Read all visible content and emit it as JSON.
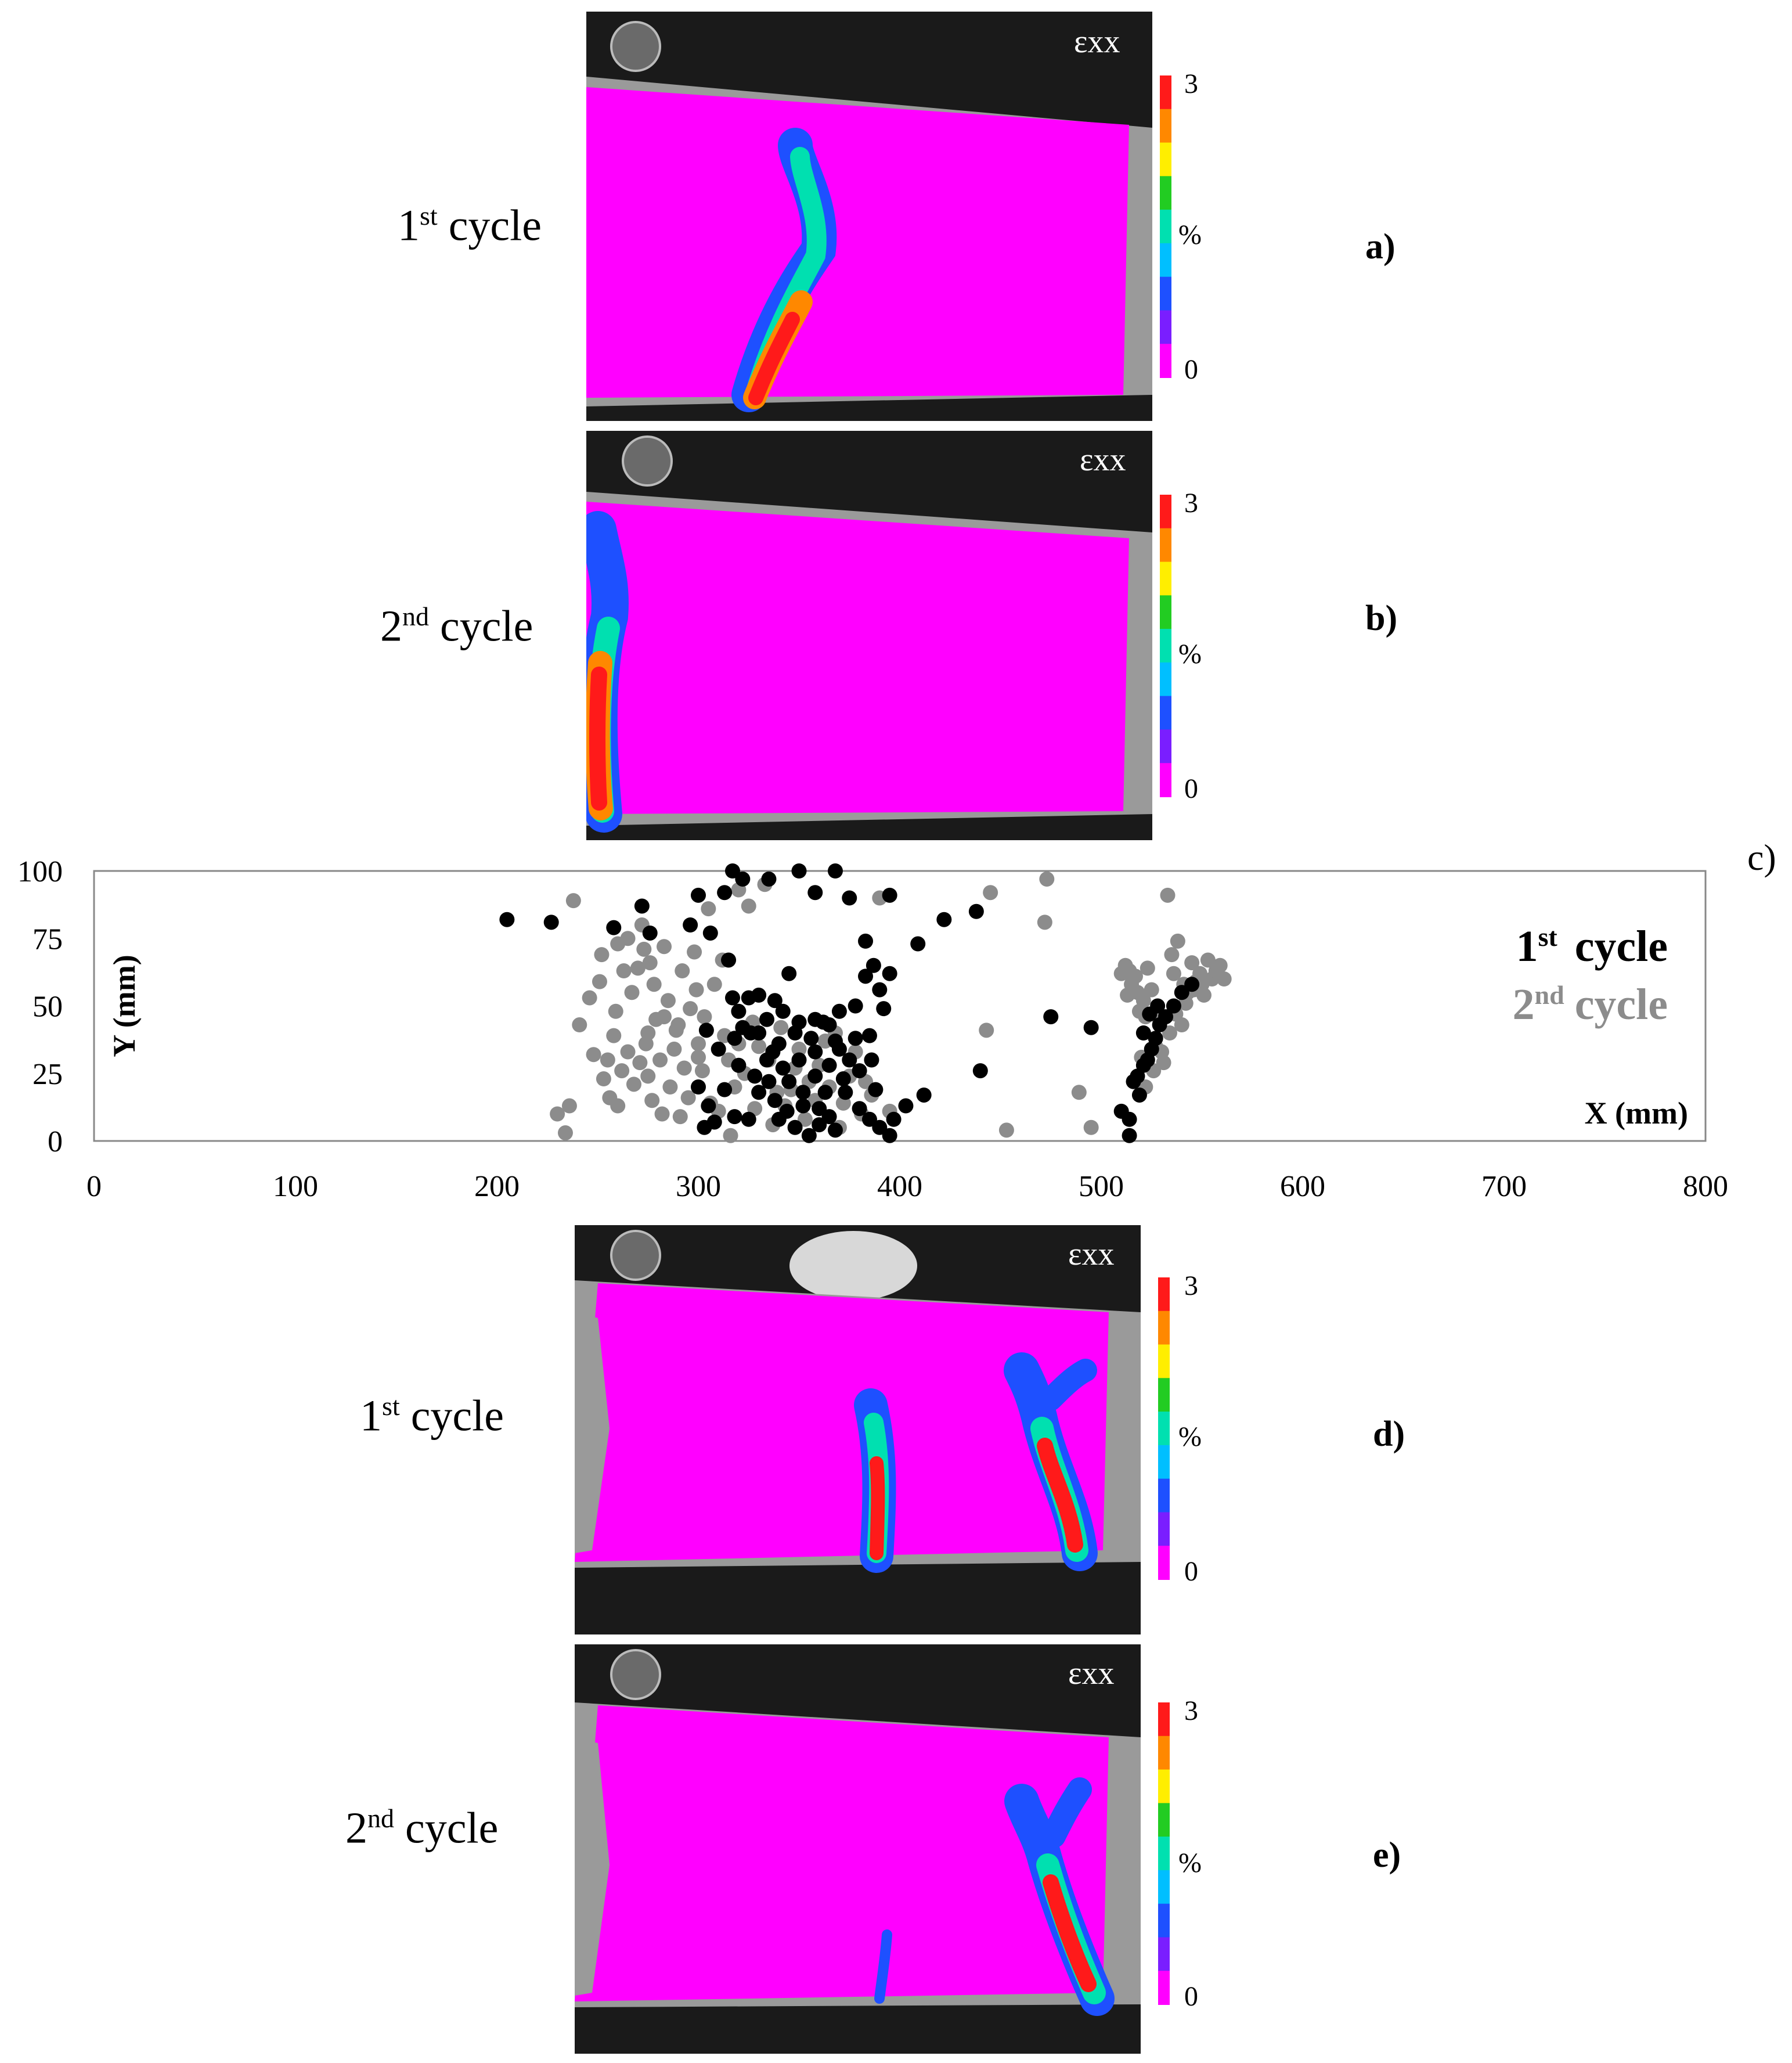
{
  "strain_symbol": "εxx",
  "colorbar": {
    "max": "3",
    "unit": "%",
    "min": "0",
    "colors": [
      "#ff1a1a",
      "#ff8800",
      "#ffee00",
      "#22cc22",
      "#00e0b0",
      "#00bfff",
      "#1e50ff",
      "#7a1eff",
      "#ff00ff"
    ]
  },
  "panels": [
    {
      "label": "a)",
      "cycle": "1",
      "suffix": "st",
      "word": "cycle"
    },
    {
      "label": "b)",
      "cycle": "2",
      "suffix": "nd",
      "word": "cycle"
    },
    {
      "label": "d)",
      "cycle": "1",
      "suffix": "st",
      "word": "cycle"
    },
    {
      "label": "e)",
      "cycle": "2",
      "suffix": "nd",
      "word": "cycle"
    }
  ],
  "chart_label": "c)",
  "chart_data": {
    "type": "scatter",
    "xlabel": "X (mm)",
    "ylabel": "Y (mm)",
    "xlim": [
      0,
      800
    ],
    "ylim": [
      0,
      100
    ],
    "xticks": [
      "0",
      "100",
      "200",
      "300",
      "400",
      "500",
      "600",
      "700",
      "800"
    ],
    "yticks": [
      "0",
      "25",
      "50",
      "75",
      "100"
    ],
    "legend": "right, inside plot",
    "series": [
      {
        "name_num": "1",
        "name_sup": "st",
        "name_word": "cycle",
        "color": "#000000",
        "points": [
          [
            205,
            82
          ],
          [
            227,
            81
          ],
          [
            258,
            79
          ],
          [
            272,
            87
          ],
          [
            276,
            77
          ],
          [
            296,
            80
          ],
          [
            306,
            77
          ],
          [
            313,
            92
          ],
          [
            300,
            91
          ],
          [
            317,
            100
          ],
          [
            322,
            97
          ],
          [
            335,
            97
          ],
          [
            350,
            100
          ],
          [
            368,
            100
          ],
          [
            358,
            92
          ],
          [
            375,
            90
          ],
          [
            383,
            74
          ],
          [
            395,
            91
          ],
          [
            409,
            73
          ],
          [
            422,
            82
          ],
          [
            438,
            85
          ],
          [
            440,
            26
          ],
          [
            475,
            46
          ],
          [
            495,
            42
          ],
          [
            315,
            67
          ],
          [
            317,
            53
          ],
          [
            320,
            48
          ],
          [
            325,
            53
          ],
          [
            330,
            54
          ],
          [
            338,
            52
          ],
          [
            345,
            62
          ],
          [
            350,
            44
          ],
          [
            358,
            45
          ],
          [
            365,
            43
          ],
          [
            370,
            48
          ],
          [
            378,
            50
          ],
          [
            383,
            61
          ],
          [
            387,
            65
          ],
          [
            390,
            56
          ],
          [
            395,
            62
          ],
          [
            392,
            49
          ],
          [
            385,
            39
          ],
          [
            378,
            38
          ],
          [
            370,
            34
          ],
          [
            365,
            28
          ],
          [
            358,
            24
          ],
          [
            350,
            30
          ],
          [
            342,
            27
          ],
          [
            335,
            22
          ],
          [
            328,
            24
          ],
          [
            320,
            28
          ],
          [
            313,
            19
          ],
          [
            305,
            13
          ],
          [
            300,
            20
          ],
          [
            308,
            7
          ],
          [
            318,
            9
          ],
          [
            325,
            8
          ],
          [
            330,
            18
          ],
          [
            338,
            15
          ],
          [
            345,
            22
          ],
          [
            352,
            18
          ],
          [
            360,
            12
          ],
          [
            365,
            9
          ],
          [
            368,
            4
          ],
          [
            373,
            18
          ],
          [
            380,
            12
          ],
          [
            385,
            8
          ],
          [
            390,
            5
          ],
          [
            397,
            8
          ],
          [
            403,
            13
          ],
          [
            412,
            17
          ],
          [
            395,
            2
          ],
          [
            388,
            19
          ],
          [
            375,
            30
          ],
          [
            368,
            37
          ],
          [
            362,
            44
          ],
          [
            356,
            38
          ],
          [
            348,
            40
          ],
          [
            340,
            36
          ],
          [
            334,
            30
          ],
          [
            326,
            40
          ],
          [
            318,
            38
          ],
          [
            310,
            34
          ],
          [
            304,
            41
          ],
          [
            334,
            45
          ],
          [
            342,
            48
          ],
          [
            340,
            8
          ],
          [
            355,
            2
          ],
          [
            360,
            6
          ],
          [
            348,
            5
          ],
          [
            303,
            5
          ],
          [
            510,
            11
          ],
          [
            514,
            8
          ],
          [
            516,
            22
          ],
          [
            518,
            24
          ],
          [
            521,
            28
          ],
          [
            523,
            30
          ],
          [
            525,
            34
          ],
          [
            527,
            38
          ],
          [
            529,
            43
          ],
          [
            532,
            46
          ],
          [
            536,
            50
          ],
          [
            540,
            55
          ],
          [
            545,
            58
          ],
          [
            519,
            17
          ],
          [
            514,
            2
          ],
          [
            521,
            40
          ],
          [
            524,
            47
          ],
          [
            528,
            50
          ],
          [
            330,
            40
          ],
          [
            372,
            23
          ],
          [
            358,
            33
          ],
          [
            344,
            11
          ],
          [
            322,
            42
          ],
          [
            380,
            26
          ],
          [
            363,
            18
          ],
          [
            352,
            13
          ],
          [
            337,
            33
          ],
          [
            386,
            30
          ]
        ]
      },
      {
        "name_num": "2",
        "name_sup": "nd",
        "name_word": "cycle",
        "color": "#8c8c8c",
        "points": [
          [
            230,
            10
          ],
          [
            234,
            3
          ],
          [
            236,
            13
          ],
          [
            238,
            89
          ],
          [
            241,
            43
          ],
          [
            246,
            53
          ],
          [
            248,
            32
          ],
          [
            251,
            59
          ],
          [
            252,
            69
          ],
          [
            253,
            23
          ],
          [
            256,
            16
          ],
          [
            255,
            30
          ],
          [
            258,
            39
          ],
          [
            259,
            48
          ],
          [
            260,
            73
          ],
          [
            262,
            26
          ],
          [
            263,
            63
          ],
          [
            265,
            33
          ],
          [
            265,
            75
          ],
          [
            267,
            55
          ],
          [
            268,
            21
          ],
          [
            270,
            64
          ],
          [
            271,
            29
          ],
          [
            272,
            80
          ],
          [
            273,
            71
          ],
          [
            274,
            36
          ],
          [
            275,
            24
          ],
          [
            276,
            66
          ],
          [
            277,
            15
          ],
          [
            278,
            58
          ],
          [
            279,
            45
          ],
          [
            281,
            30
          ],
          [
            282,
            10
          ],
          [
            283,
            72
          ],
          [
            285,
            52
          ],
          [
            286,
            20
          ],
          [
            288,
            34
          ],
          [
            289,
            41
          ],
          [
            291,
            9
          ],
          [
            292,
            63
          ],
          [
            293,
            27
          ],
          [
            295,
            16
          ],
          [
            296,
            49
          ],
          [
            298,
            70
          ],
          [
            299,
            56
          ],
          [
            300,
            36
          ],
          [
            302,
            26
          ],
          [
            303,
            46
          ],
          [
            305,
            86
          ],
          [
            306,
            14
          ],
          [
            308,
            58
          ],
          [
            310,
            11
          ],
          [
            312,
            67
          ],
          [
            313,
            39
          ],
          [
            315,
            30
          ],
          [
            316,
            2
          ],
          [
            318,
            20
          ],
          [
            320,
            93
          ],
          [
            323,
            25
          ],
          [
            325,
            87
          ],
          [
            327,
            44
          ],
          [
            328,
            12
          ],
          [
            330,
            35
          ],
          [
            333,
            95
          ],
          [
            335,
            30
          ],
          [
            337,
            6
          ],
          [
            339,
            18
          ],
          [
            341,
            42
          ],
          [
            343,
            13
          ],
          [
            346,
            19
          ],
          [
            348,
            27
          ],
          [
            350,
            34
          ],
          [
            353,
            8
          ],
          [
            355,
            22
          ],
          [
            358,
            15
          ],
          [
            360,
            28
          ],
          [
            363,
            37
          ],
          [
            365,
            20
          ],
          [
            368,
            40
          ],
          [
            370,
            5
          ],
          [
            372,
            14
          ],
          [
            375,
            24
          ],
          [
            378,
            33
          ],
          [
            381,
            10
          ],
          [
            383,
            22
          ],
          [
            386,
            17
          ],
          [
            390,
            90
          ],
          [
            395,
            11
          ],
          [
            443,
            41
          ],
          [
            445,
            92
          ],
          [
            453,
            4
          ],
          [
            472,
            81
          ],
          [
            473,
            97
          ],
          [
            489,
            18
          ],
          [
            495,
            5
          ],
          [
            510,
            62
          ],
          [
            512,
            65
          ],
          [
            513,
            54
          ],
          [
            515,
            58
          ],
          [
            517,
            61
          ],
          [
            519,
            48
          ],
          [
            521,
            52
          ],
          [
            523,
            64
          ],
          [
            525,
            56
          ],
          [
            527,
            35
          ],
          [
            529,
            45
          ],
          [
            531,
            29
          ],
          [
            533,
            91
          ],
          [
            535,
            69
          ],
          [
            536,
            62
          ],
          [
            538,
            74
          ],
          [
            540,
            43
          ],
          [
            541,
            58
          ],
          [
            543,
            55
          ],
          [
            545,
            66
          ],
          [
            547,
            59
          ],
          [
            549,
            62
          ],
          [
            551,
            54
          ],
          [
            553,
            67
          ],
          [
            555,
            60
          ],
          [
            557,
            63
          ],
          [
            559,
            65
          ],
          [
            561,
            60
          ],
          [
            520,
            31
          ],
          [
            522,
            20
          ],
          [
            526,
            26
          ],
          [
            530,
            33
          ],
          [
            534,
            40
          ],
          [
            537,
            47
          ],
          [
            542,
            51
          ],
          [
            546,
            56
          ],
          [
            550,
            58
          ],
          [
            518,
            55
          ],
          [
            514,
            63
          ],
          [
            522,
            46
          ],
          [
            260,
            13
          ],
          [
            275,
            40
          ],
          [
            290,
            43
          ],
          [
            320,
            36
          ],
          [
            300,
            31
          ],
          [
            283,
            46
          ]
        ]
      }
    ]
  }
}
